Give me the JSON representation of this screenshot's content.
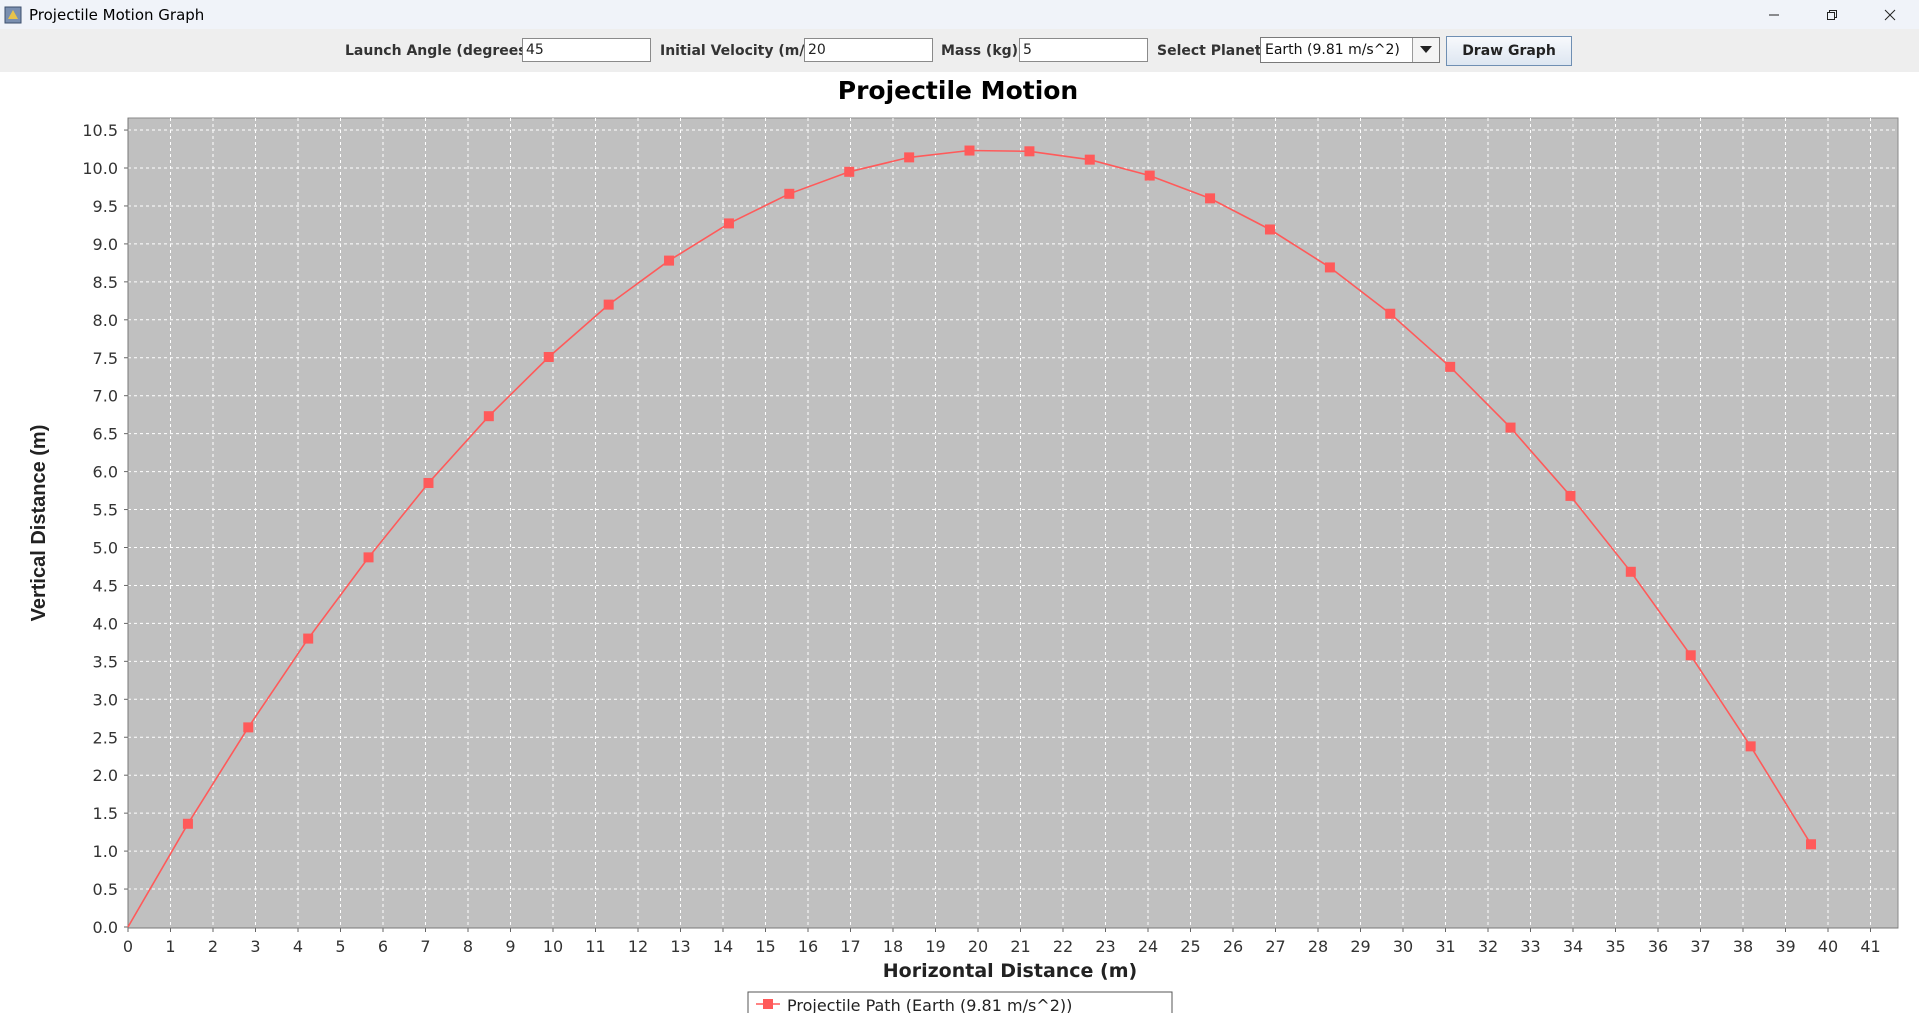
{
  "window": {
    "title": "Projectile Motion Graph",
    "controls": [
      "minimize-icon",
      "restore-icon",
      "close-icon"
    ]
  },
  "toolbar": {
    "angle_label": "Launch Angle (degrees):",
    "angle_value": "45",
    "velocity_label": "Initial Velocity (m/s):",
    "velocity_value": "20",
    "mass_label": "Mass (kg):",
    "mass_value": "5",
    "planet_label": "Select Planet:",
    "planet_value": "Earth (9.81 m/s^2)",
    "draw_button": "Draw Graph"
  },
  "chart_data": {
    "type": "line",
    "title": "Projectile Motion",
    "xlabel": "Horizontal Distance (m)",
    "ylabel": "Vertical Distance (m)",
    "xlim": [
      0,
      41.5
    ],
    "ylim": [
      0,
      10.5
    ],
    "grid": true,
    "legend_position": "bottom",
    "x_ticks": [
      "0",
      "1",
      "2",
      "3",
      "4",
      "5",
      "6",
      "7",
      "8",
      "9",
      "10",
      "11",
      "12",
      "13",
      "14",
      "15",
      "16",
      "17",
      "18",
      "19",
      "20",
      "21",
      "22",
      "23",
      "24",
      "25",
      "26",
      "27",
      "28",
      "29",
      "30",
      "31",
      "32",
      "33",
      "34",
      "35",
      "36",
      "37",
      "38",
      "39",
      "40",
      "41"
    ],
    "y_ticks": [
      "0.0",
      "0.5",
      "1.0",
      "1.5",
      "2.0",
      "2.5",
      "3.0",
      "3.5",
      "4.0",
      "4.5",
      "5.0",
      "5.5",
      "6.0",
      "6.5",
      "7.0",
      "7.5",
      "8.0",
      "8.5",
      "9.0",
      "9.5",
      "10.0",
      "10.5"
    ],
    "series": [
      {
        "name": "Projectile Path (Earth (9.81 m/s^2))",
        "color": "#ff5a5a",
        "points": [
          [
            0.0,
            0.0
          ],
          [
            1.41,
            1.36
          ],
          [
            2.83,
            2.63
          ],
          [
            4.24,
            3.8
          ],
          [
            5.66,
            4.87
          ],
          [
            7.07,
            5.85
          ],
          [
            8.49,
            6.73
          ],
          [
            9.9,
            7.51
          ],
          [
            11.31,
            8.2
          ],
          [
            12.73,
            8.78
          ],
          [
            14.14,
            9.27
          ],
          [
            15.56,
            9.66
          ],
          [
            16.97,
            9.95
          ],
          [
            18.38,
            10.14
          ],
          [
            19.8,
            10.23
          ],
          [
            21.21,
            10.22
          ],
          [
            22.63,
            10.11
          ],
          [
            24.04,
            9.9
          ],
          [
            25.46,
            9.6
          ],
          [
            26.87,
            9.19
          ],
          [
            28.28,
            8.69
          ],
          [
            29.7,
            8.08
          ],
          [
            31.11,
            7.38
          ],
          [
            32.53,
            6.58
          ],
          [
            33.94,
            5.68
          ],
          [
            35.36,
            4.68
          ],
          [
            36.77,
            3.58
          ],
          [
            38.18,
            2.38
          ],
          [
            39.6,
            1.09
          ]
        ]
      }
    ]
  }
}
